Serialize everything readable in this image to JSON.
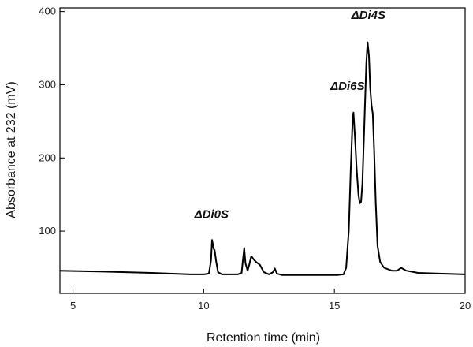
{
  "chart_data": {
    "type": "line",
    "title": "",
    "xlabel": "Retention time (min)",
    "ylabel": "Absorbance at 232 (mV)",
    "xlim": [
      4.5,
      20
    ],
    "ylim": [
      15,
      405
    ],
    "xticks": [
      5,
      10,
      15,
      20
    ],
    "yticks": [
      100,
      200,
      300,
      400
    ],
    "grid": false,
    "series": [
      {
        "values": [
          [
            4.5,
            46
          ],
          [
            6,
            45
          ],
          [
            8,
            43
          ],
          [
            9.5,
            41
          ],
          [
            10.0,
            41
          ],
          [
            10.2,
            42
          ],
          [
            10.28,
            60
          ],
          [
            10.32,
            88
          ],
          [
            10.38,
            76
          ],
          [
            10.42,
            74
          ],
          [
            10.47,
            60
          ],
          [
            10.55,
            44
          ],
          [
            10.7,
            41
          ],
          [
            11.3,
            41
          ],
          [
            11.45,
            43
          ],
          [
            11.5,
            60
          ],
          [
            11.55,
            77
          ],
          [
            11.6,
            56
          ],
          [
            11.68,
            46
          ],
          [
            11.75,
            55
          ],
          [
            11.82,
            66
          ],
          [
            11.9,
            62
          ],
          [
            12.0,
            58
          ],
          [
            12.15,
            54
          ],
          [
            12.3,
            44
          ],
          [
            12.5,
            41
          ],
          [
            12.65,
            44
          ],
          [
            12.72,
            49
          ],
          [
            12.8,
            42
          ],
          [
            13.0,
            40
          ],
          [
            14.5,
            40
          ],
          [
            15.1,
            40
          ],
          [
            15.35,
            41
          ],
          [
            15.45,
            50
          ],
          [
            15.55,
            100
          ],
          [
            15.62,
            180
          ],
          [
            15.7,
            255
          ],
          [
            15.73,
            262
          ],
          [
            15.8,
            220
          ],
          [
            15.85,
            185
          ],
          [
            15.92,
            150
          ],
          [
            15.97,
            138
          ],
          [
            16.02,
            140
          ],
          [
            16.07,
            165
          ],
          [
            16.15,
            250
          ],
          [
            16.22,
            330
          ],
          [
            16.27,
            358
          ],
          [
            16.32,
            340
          ],
          [
            16.37,
            295
          ],
          [
            16.42,
            272
          ],
          [
            16.47,
            260
          ],
          [
            16.52,
            210
          ],
          [
            16.58,
            140
          ],
          [
            16.65,
            80
          ],
          [
            16.75,
            58
          ],
          [
            16.9,
            50
          ],
          [
            17.2,
            46
          ],
          [
            17.4,
            46
          ],
          [
            17.55,
            50
          ],
          [
            17.75,
            46
          ],
          [
            18.2,
            43
          ],
          [
            19.0,
            42
          ],
          [
            20.0,
            41
          ]
        ]
      }
    ],
    "annotations": [
      {
        "text": "ΔDi0S",
        "x": 10.3,
        "y": 118
      },
      {
        "text": "ΔDi6S",
        "x": 15.5,
        "y": 293
      },
      {
        "text": "ΔDi4S",
        "x": 16.3,
        "y": 390
      }
    ]
  }
}
